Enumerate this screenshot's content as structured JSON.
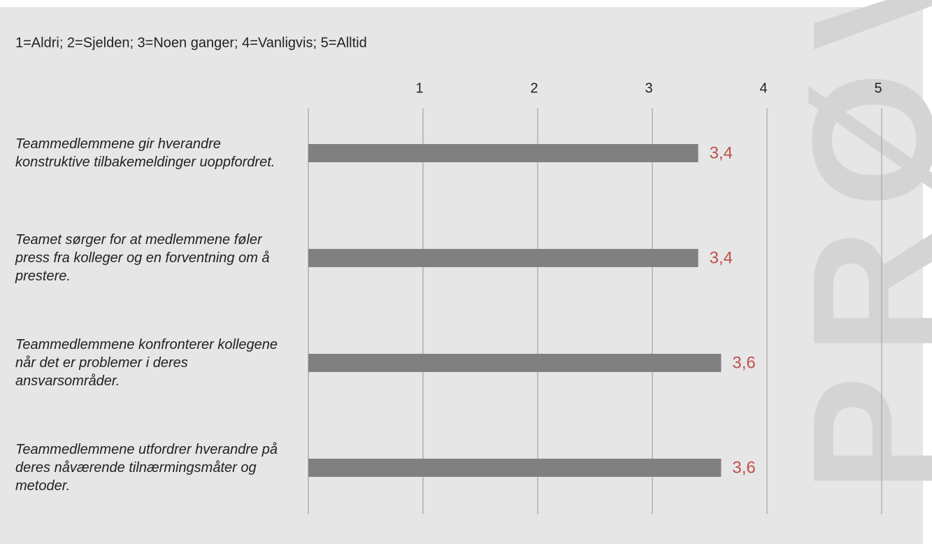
{
  "chart_data": {
    "type": "barh",
    "subtitle": "1=Aldri; 2=Sjelden; 3=Noen ganger; 4=Vanligvis; 5=Alltid",
    "categories": [
      "Teammedlemmene gir hverandre konstruktive tilbakemeldinger uoppfordret.",
      "Teamet sørger for at medlemmene føler press fra kolleger og en forventning om å prestere.",
      "Teammedlemmene konfronterer kollegene når det er problemer i deres ansvarsområder.",
      "Teammedlemmene utfordrer hverandre på deres nåværende tilnærmingsmåter og metoder."
    ],
    "values": [
      3.4,
      3.4,
      3.6,
      3.6
    ],
    "value_labels": [
      "3,4",
      "3,4",
      "3,6",
      "3,6"
    ],
    "color": "#808080",
    "label_color": "#c0504d",
    "xlim": [
      0,
      5
    ],
    "xticks": [
      1,
      2,
      3,
      4,
      5
    ],
    "grid": true,
    "watermark": "PRØV"
  }
}
